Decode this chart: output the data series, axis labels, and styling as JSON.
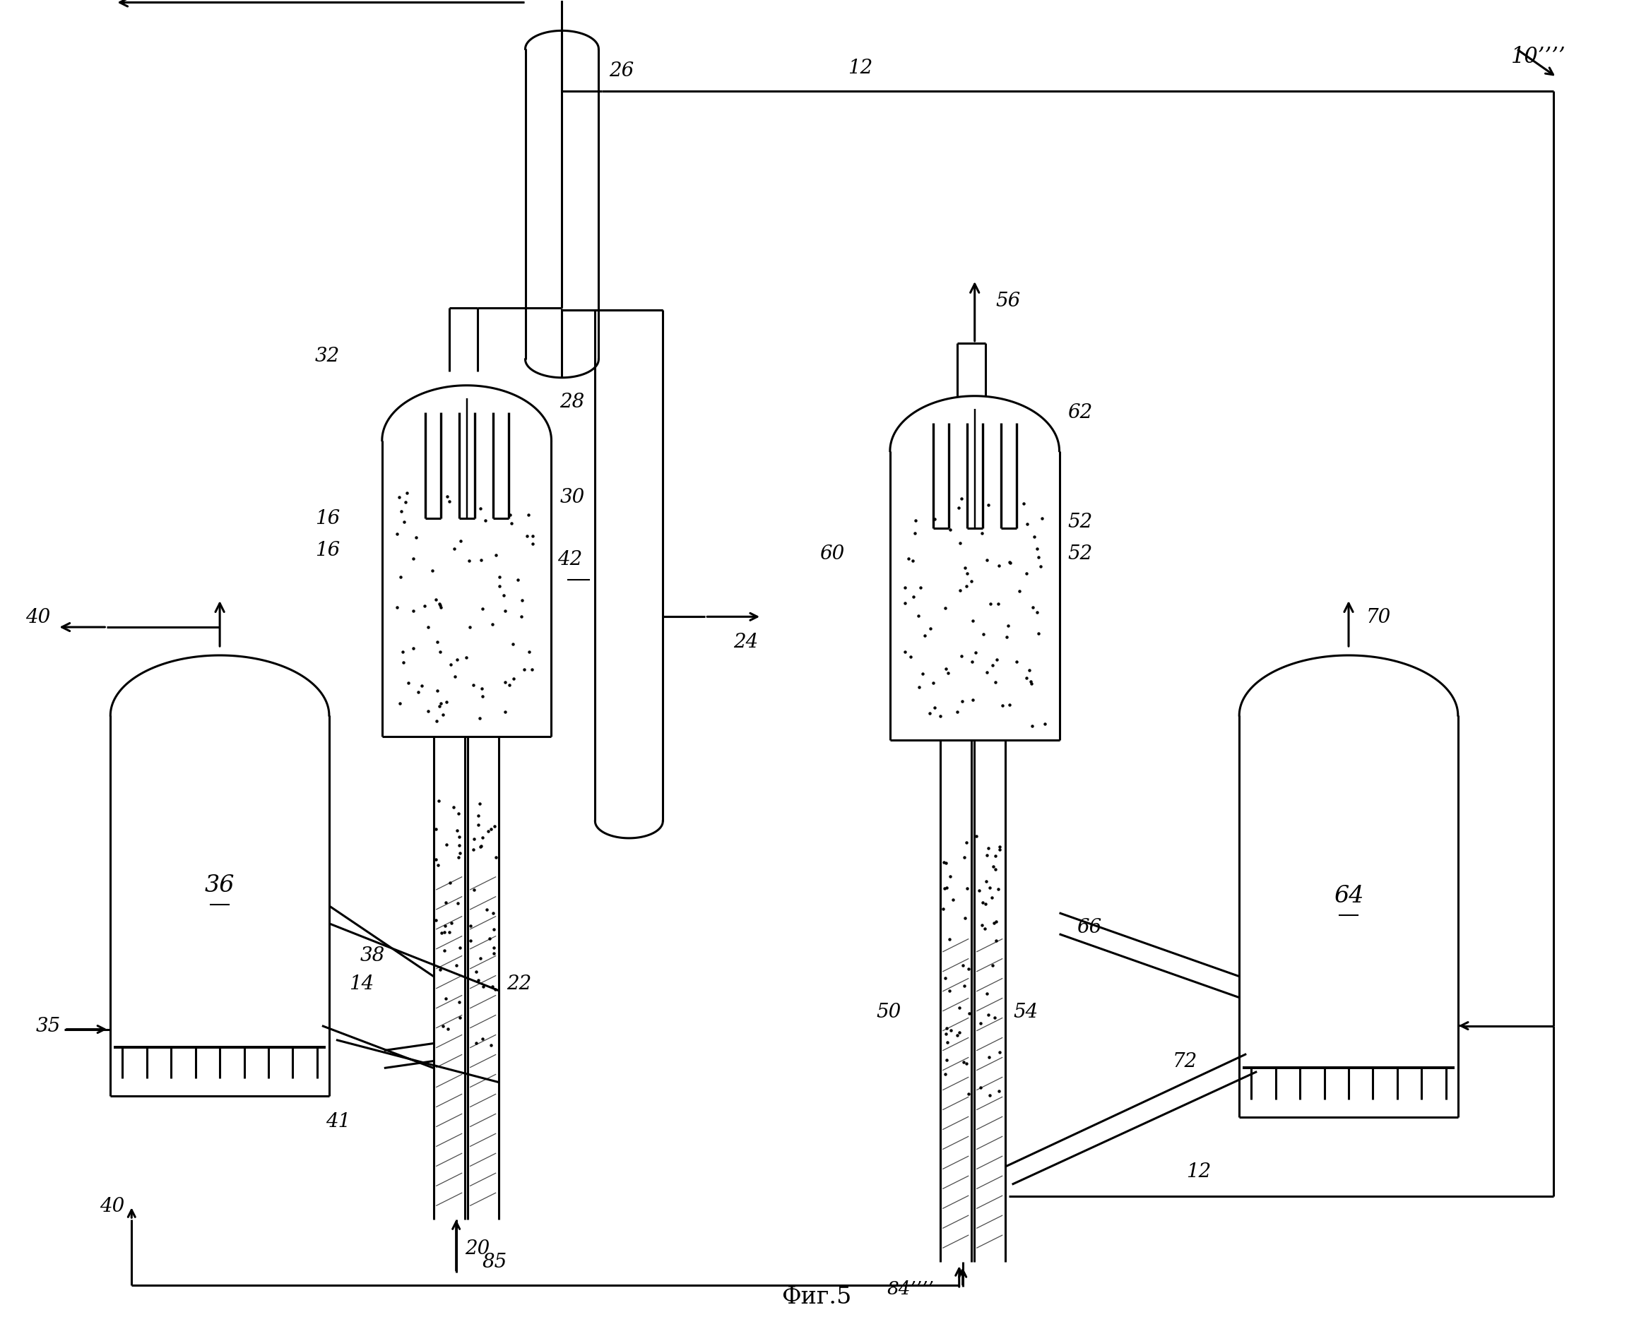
{
  "bg": "#ffffff",
  "lc": "#000000",
  "lw": 2.2,
  "fs": 20,
  "title": "Фиг.5",
  "labels": {
    "10": "10’’’’",
    "12": "12",
    "14": "14",
    "16a": "16",
    "16b": "16",
    "20": "20",
    "22": "22",
    "24": "24",
    "26": "26",
    "28": "28",
    "30": "30",
    "32": "32",
    "35": "35",
    "36": "36",
    "38": "38",
    "40a": "40",
    "40b": "40",
    "41": "41",
    "42": "42",
    "50": "50",
    "52a": "52",
    "52b": "52",
    "54": "54",
    "56": "56",
    "60": "60",
    "62": "62",
    "64": "64",
    "66": "66",
    "70": "70",
    "72": "72",
    "84": "84’’’’",
    "85": "85"
  }
}
